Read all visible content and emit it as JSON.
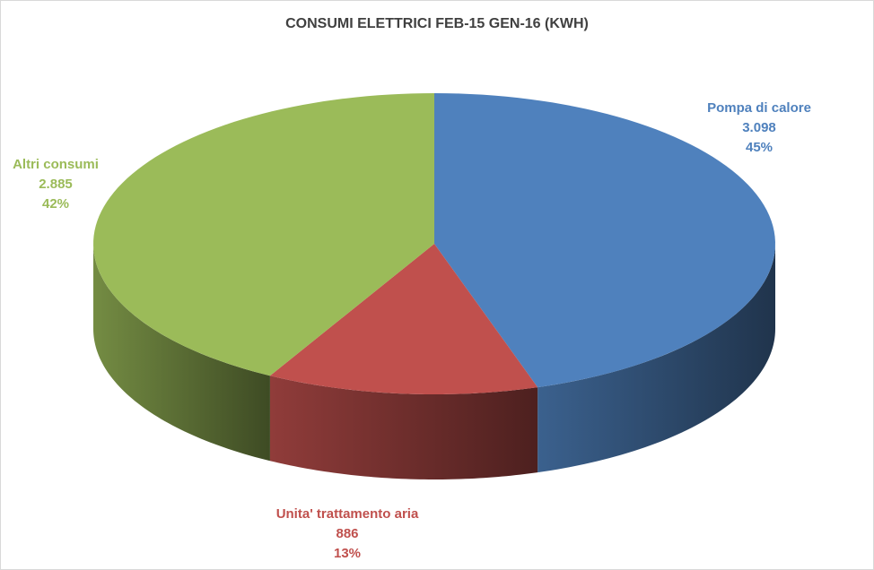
{
  "chart_data": {
    "type": "pie3d",
    "title": "CONSUMI ELETTRICI FEB-15 GEN-16 (KWH)",
    "categories": [
      "Pompa di calore",
      "Unita' trattamento aria",
      "Altri consumi"
    ],
    "values": [
      3098,
      886,
      2885
    ],
    "value_labels": [
      "3.098",
      "886",
      "2.885"
    ],
    "percent_labels": [
      "45%",
      "13%",
      "42%"
    ],
    "colors": [
      "#4f81bd",
      "#c0504d",
      "#9bbb59"
    ]
  }
}
